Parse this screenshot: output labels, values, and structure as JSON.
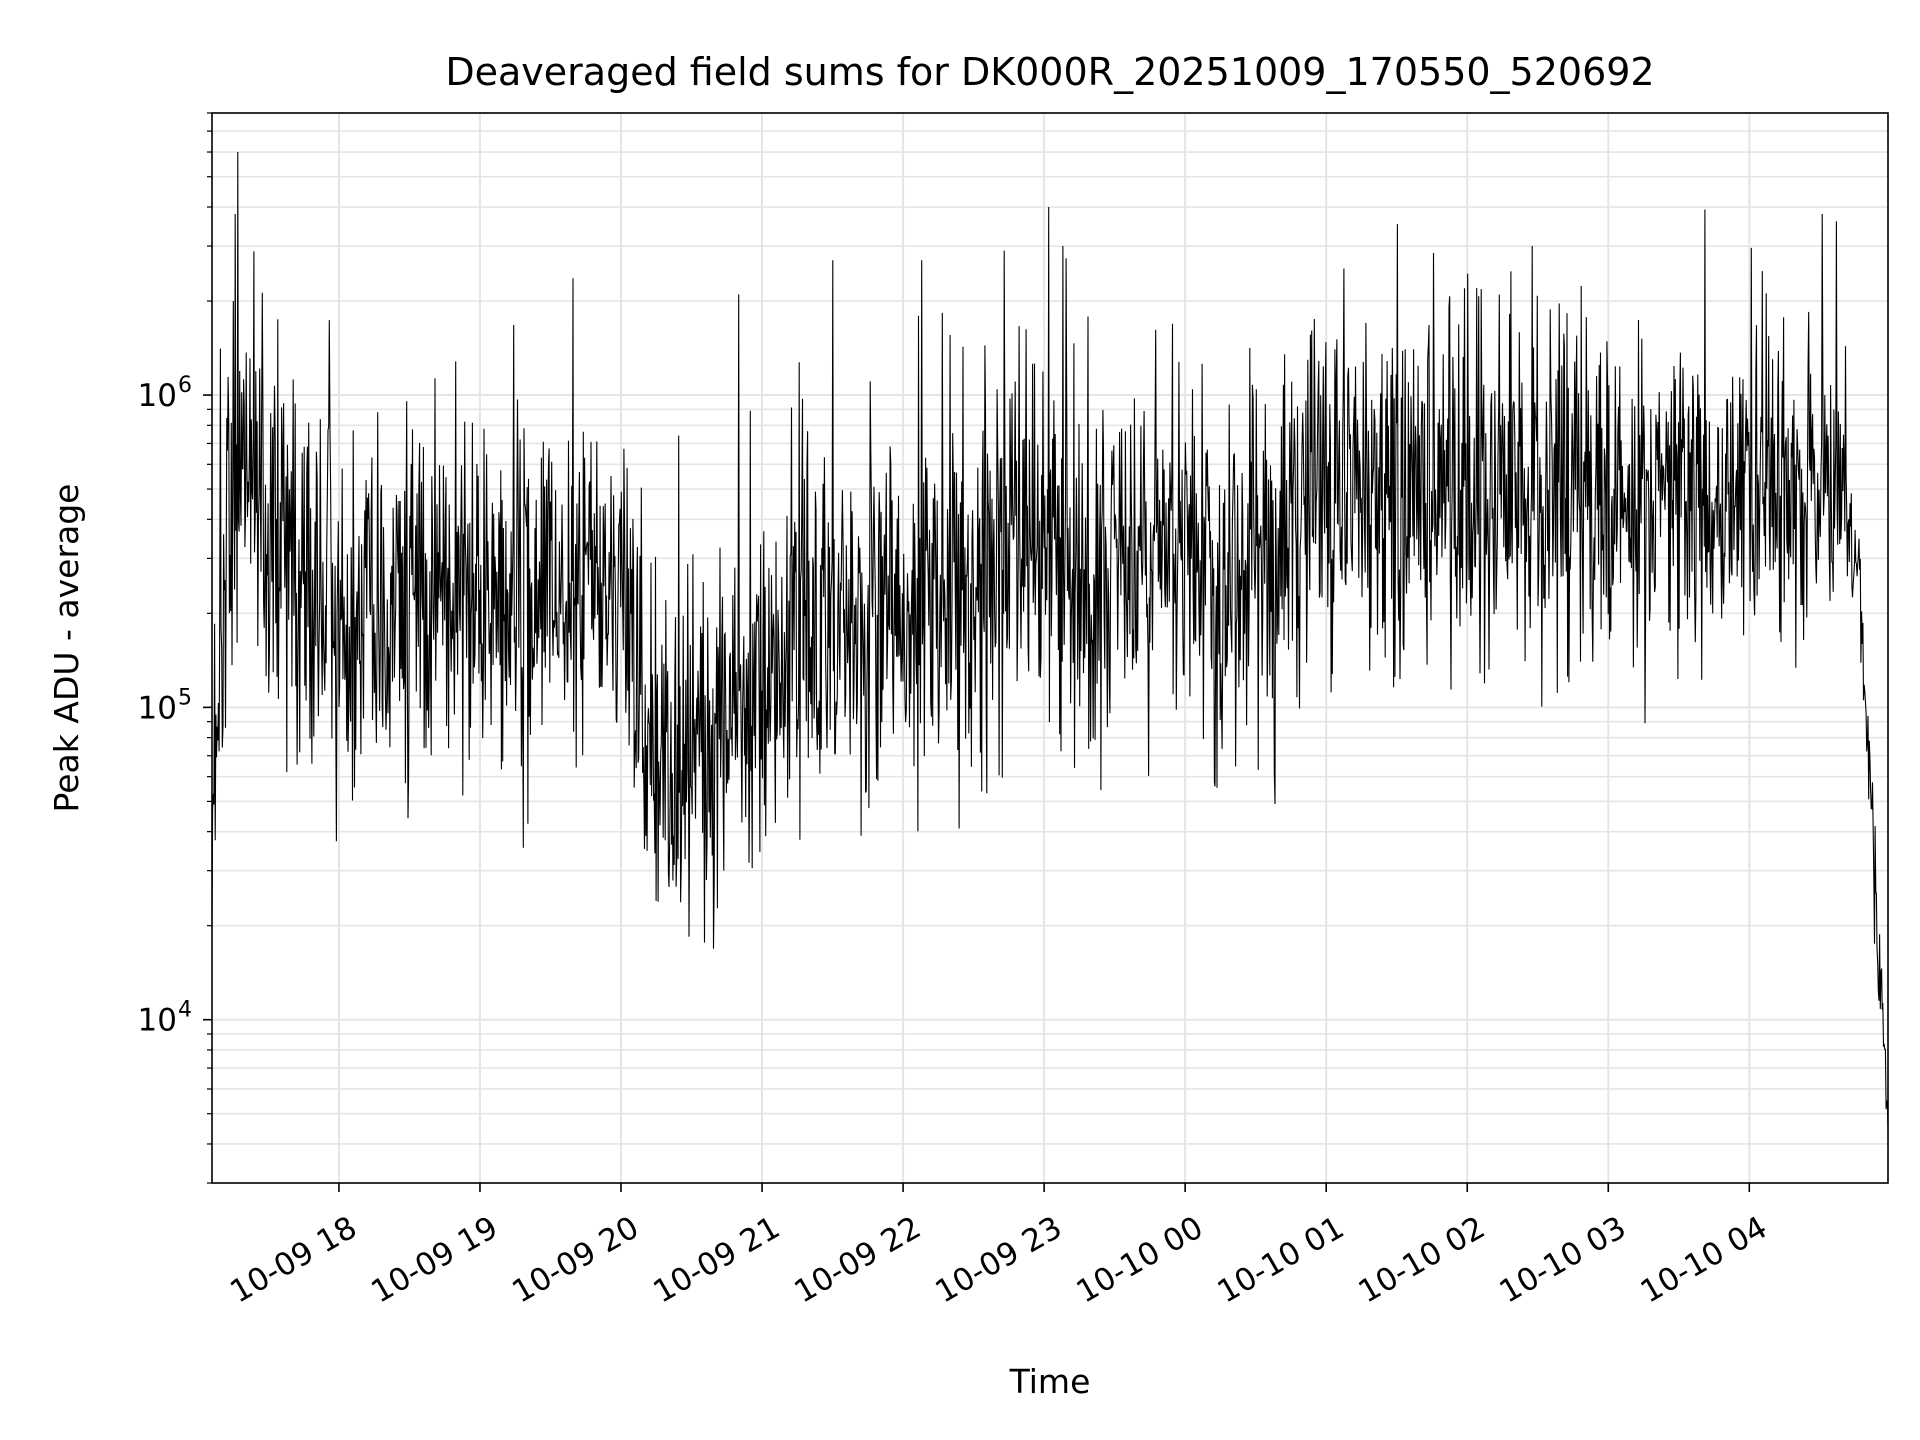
{
  "chart_data": {
    "type": "line",
    "title": "Deaveraged field sums for DK000R_20251009_170550_520692",
    "xlabel": "Time",
    "ylabel": "Peak ADU - average",
    "yscale": "log",
    "ylim": [
      3000,
      8000000
    ],
    "xlim": [
      "2025-10-09 17:06",
      "2025-10-10 04:59"
    ],
    "grid": true,
    "line_color": "#000000",
    "grid_color": "#e5e5e5",
    "x_ticks": [
      "10-09 18",
      "10-09 19",
      "10-09 20",
      "10-09 21",
      "10-09 22",
      "10-09 23",
      "10-10 00",
      "10-10 01",
      "10-10 02",
      "10-10 03",
      "10-10 04"
    ],
    "x_tick_values": [
      "2025-10-09 18:00",
      "2025-10-09 19:00",
      "2025-10-09 20:00",
      "2025-10-09 21:00",
      "2025-10-09 22:00",
      "2025-10-09 23:00",
      "2025-10-10 00:00",
      "2025-10-10 01:00",
      "2025-10-10 02:00",
      "2025-10-10 03:00",
      "2025-10-10 04:00"
    ],
    "y_ticks": [
      {
        "value": 10000,
        "base": "10",
        "exp": "4"
      },
      {
        "value": 100000,
        "base": "10",
        "exp": "5"
      },
      {
        "value": 1000000,
        "base": "10",
        "exp": "6"
      }
    ],
    "series": [
      {
        "profile": [
          {
            "t": "2025-10-09 17:06",
            "center": 50000,
            "spread": 0.25
          },
          {
            "t": "2025-10-09 17:12",
            "center": 250000,
            "spread": 0.4
          },
          {
            "t": "2025-10-09 17:20",
            "center": 700000,
            "spread": 0.35
          },
          {
            "t": "2025-10-09 17:30",
            "center": 350000,
            "spread": 0.4
          },
          {
            "t": "2025-10-09 18:00",
            "center": 230000,
            "spread": 0.42
          },
          {
            "t": "2025-10-09 19:00",
            "center": 220000,
            "spread": 0.42
          },
          {
            "t": "2025-10-09 20:00",
            "center": 250000,
            "spread": 0.4
          },
          {
            "t": "2025-10-09 20:15",
            "center": 60000,
            "spread": 0.35
          },
          {
            "t": "2025-10-09 20:45",
            "center": 90000,
            "spread": 0.4
          },
          {
            "t": "2025-10-09 21:30",
            "center": 180000,
            "spread": 0.42
          },
          {
            "t": "2025-10-09 22:30",
            "center": 300000,
            "spread": 0.45
          },
          {
            "t": "2025-10-09 23:00",
            "center": 350000,
            "spread": 0.42
          },
          {
            "t": "2025-10-09 23:15",
            "center": 200000,
            "spread": 0.4
          },
          {
            "t": "2025-10-10 00:00",
            "center": 350000,
            "spread": 0.4
          },
          {
            "t": "2025-10-10 00:15",
            "center": 200000,
            "spread": 0.4
          },
          {
            "t": "2025-10-10 01:00",
            "center": 450000,
            "spread": 0.4
          },
          {
            "t": "2025-10-10 02:00",
            "center": 480000,
            "spread": 0.4
          },
          {
            "t": "2025-10-10 03:00",
            "center": 480000,
            "spread": 0.4
          },
          {
            "t": "2025-10-10 04:00",
            "center": 520000,
            "spread": 0.35
          },
          {
            "t": "2025-10-10 04:40",
            "center": 450000,
            "spread": 0.25
          },
          {
            "t": "2025-10-10 04:47",
            "center": 250000,
            "spread": 0.1
          },
          {
            "t": "2025-10-10 04:53",
            "center": 30000,
            "spread": 0.15
          },
          {
            "t": "2025-10-10 04:59",
            "center": 5000,
            "spread": 0.1
          }
        ],
        "spikes": [
          {
            "t": "2025-10-09 17:06",
            "value": 20000
          },
          {
            "t": "2025-10-09 17:16",
            "value": 3800000
          },
          {
            "t": "2025-10-09 17:17",
            "value": 6000000
          },
          {
            "t": "2025-10-09 17:15",
            "value": 2000000
          },
          {
            "t": "2025-10-09 20:15",
            "value": 24000
          },
          {
            "t": "2025-10-09 20:50",
            "value": 2100000
          },
          {
            "t": "2025-10-09 21:30",
            "value": 2700000
          },
          {
            "t": "2025-10-09 22:08",
            "value": 2700000
          },
          {
            "t": "2025-10-09 22:43",
            "value": 2900000
          },
          {
            "t": "2025-10-09 23:02",
            "value": 4000000
          },
          {
            "t": "2025-10-09 23:08",
            "value": 3000000
          },
          {
            "t": "2025-10-10 02:04",
            "value": 2200000
          },
          {
            "t": "2025-10-10 04:31",
            "value": 3800000
          },
          {
            "t": "2025-10-10 04:37",
            "value": 3600000
          },
          {
            "t": "2025-10-10 04:59",
            "value": 4500
          }
        ]
      }
    ]
  }
}
